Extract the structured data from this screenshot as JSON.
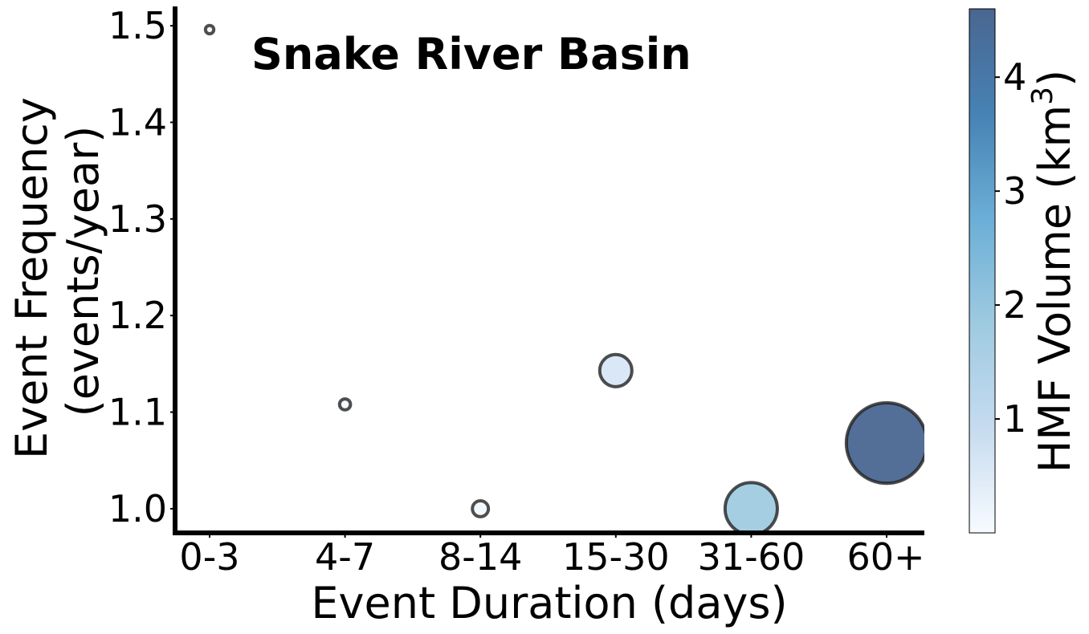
{
  "chart_data": {
    "type": "scatter",
    "title": "Snake River Basin",
    "xlabel": "Event Duration (days)",
    "ylabel_line1": "Event Frequency",
    "ylabel_line2": "(events/year)",
    "categories": [
      "0-3",
      "4-7",
      "8-14",
      "15-30",
      "31-60",
      "60+"
    ],
    "points": [
      {
        "category": "0-3",
        "frequency": 1.496,
        "volume": 0.01
      },
      {
        "category": "4-7",
        "frequency": 1.108,
        "volume": 0.03
      },
      {
        "category": "8-14",
        "frequency": 1.0,
        "volume": 0.1
      },
      {
        "category": "15-30",
        "frequency": 1.143,
        "volume": 0.6
      },
      {
        "category": "31-60",
        "frequency": 1.0,
        "volume": 1.8
      },
      {
        "category": "60+",
        "frequency": 1.068,
        "volume": 4.6
      }
    ],
    "ylim": [
      0.975,
      1.52
    ],
    "yticks": [
      "1.0",
      "1.1",
      "1.2",
      "1.3",
      "1.4",
      "1.5"
    ],
    "colorbar": {
      "label_main": "HMF Volume (km",
      "label_sup": "3",
      "label_close": ")",
      "range": [
        0,
        4.6
      ],
      "ticks": [
        "1",
        "2",
        "3",
        "4"
      ],
      "colors": [
        "#f7fbff",
        "#c6dbef",
        "#9ecae1",
        "#6baed6",
        "#4682b4",
        "#4a6691"
      ]
    },
    "legend": "none",
    "grid": false
  }
}
